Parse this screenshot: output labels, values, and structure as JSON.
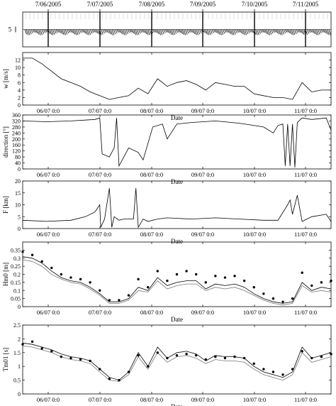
{
  "chart_data": [
    {
      "type": "line",
      "panel": "wind-barbs",
      "top_dates": [
        "7/06/2005",
        "7/07/2005",
        "7/08/2005",
        "7/09/2005",
        "7/10/2005",
        "7/11/2005"
      ],
      "scale_label": "5",
      "xlim": [
        5.0,
        11.4
      ]
    },
    {
      "type": "line",
      "ylabel": "w [m/s]",
      "xlabel": "Date",
      "ylim": [
        0,
        14
      ],
      "yticks": [
        0,
        2,
        4,
        6,
        8,
        10,
        12
      ],
      "xticks": [
        "06/07 0:0",
        "07/07 0:0",
        "08/07 0:0",
        "09/07 0:0",
        "10/07 0:0",
        "11/07 0:0"
      ],
      "xlim": [
        5.0,
        11.4
      ],
      "series": [
        {
          "x": [
            5.0,
            5.2,
            5.4,
            5.6,
            5.8,
            6.0,
            6.2,
            6.4,
            6.6,
            6.8,
            7.0,
            7.2,
            7.4,
            7.6,
            7.8,
            8.0,
            8.2,
            8.4,
            8.6,
            8.8,
            9.0,
            9.2,
            9.4,
            9.6,
            9.8,
            10.0,
            10.2,
            10.4,
            10.6,
            10.8,
            11.0,
            11.2,
            11.4
          ],
          "values": [
            12.5,
            12.5,
            11.0,
            9.0,
            7.0,
            6.0,
            5.0,
            3.5,
            2.5,
            1.5,
            2.0,
            2.5,
            4.5,
            3.0,
            7.0,
            5.0,
            6.0,
            6.5,
            5.5,
            4.0,
            6.0,
            5.5,
            5.0,
            5.0,
            3.0,
            2.5,
            2.0,
            2.0,
            1.5,
            6.0,
            3.5,
            4.0,
            4.0
          ]
        }
      ]
    },
    {
      "type": "line",
      "ylabel": "direction [°]",
      "xlabel": "Date",
      "ylim": [
        0,
        360
      ],
      "yticks": [
        0,
        40,
        80,
        120,
        160,
        200,
        240,
        280,
        320,
        360
      ],
      "xticks": [
        "06/07 0:0",
        "07/07 0:0",
        "08/07 0:0",
        "09/07 0:0",
        "10/07 0:0",
        "11/07 0:0"
      ],
      "xlim": [
        5.0,
        11.4
      ],
      "series": [
        {
          "x": [
            5.0,
            5.5,
            6.0,
            6.5,
            6.6,
            6.65,
            6.8,
            6.9,
            6.95,
            7.0,
            7.2,
            7.4,
            7.5,
            7.7,
            7.9,
            8.0,
            8.2,
            8.5,
            9.0,
            9.5,
            10.0,
            10.2,
            10.3,
            10.4,
            10.45,
            10.5,
            10.55,
            10.6,
            10.65,
            10.7,
            10.8,
            11.0,
            11.3,
            11.4
          ],
          "values": [
            320,
            315,
            320,
            330,
            340,
            100,
            80,
            140,
            340,
            20,
            140,
            110,
            60,
            280,
            300,
            200,
            300,
            310,
            320,
            305,
            280,
            240,
            290,
            300,
            20,
            300,
            20,
            300,
            10,
            310,
            340,
            330,
            340,
            260
          ]
        }
      ]
    },
    {
      "type": "line",
      "ylabel": "F [km]",
      "xlabel": "Date",
      "ylim": [
        0,
        20
      ],
      "yticks": [
        0,
        5,
        10,
        15,
        20
      ],
      "xticks": [
        "06/07 0:0",
        "07/07 0:0",
        "08/07 0:0",
        "09/07 0:0",
        "10/07 0:0",
        "11/07 0:0"
      ],
      "xlim": [
        5.0,
        11.4
      ],
      "series": [
        {
          "x": [
            5.0,
            5.5,
            6.0,
            6.3,
            6.5,
            6.6,
            6.62,
            6.7,
            6.8,
            6.85,
            6.9,
            7.0,
            7.1,
            7.3,
            7.35,
            7.4,
            7.5,
            7.6,
            7.8,
            8.0,
            8.5,
            9.0,
            9.5,
            10.0,
            10.3,
            10.5,
            10.55,
            10.6,
            10.7,
            10.8,
            11.0,
            11.3,
            11.4
          ],
          "values": [
            3.5,
            3.0,
            3.5,
            5.0,
            7.0,
            10.0,
            0.5,
            4.0,
            17.0,
            0.5,
            5.0,
            3.5,
            4.0,
            4.0,
            17.0,
            0.5,
            4.0,
            3.0,
            4.0,
            4.5,
            4.0,
            4.5,
            4.0,
            3.5,
            3.5,
            10.0,
            12.0,
            6.0,
            14.0,
            3.0,
            5.0,
            6.0,
            3.0
          ]
        }
      ]
    },
    {
      "type": "line",
      "ylabel": "Hm0 [m]",
      "xlabel": "Date",
      "ylim": [
        0,
        0.4
      ],
      "yticks": [
        0,
        0.05,
        0.1,
        0.15,
        0.2,
        0.25,
        0.3,
        0.35
      ],
      "xticks": [
        "06/07 0:0",
        "07/07 0:0",
        "08/07 0:0",
        "09/07 0:0",
        "10/07 0:0",
        "11/07 0:0"
      ],
      "xlim": [
        5.0,
        11.4
      ],
      "series": [
        {
          "name": "",
          "x": [
            5.0,
            5.2,
            5.4,
            5.6,
            5.8,
            6.0,
            6.2,
            6.4,
            6.6,
            6.8,
            7.0,
            7.2,
            7.4,
            7.6,
            7.8,
            8.0,
            8.2,
            8.4,
            8.6,
            8.8,
            9.0,
            9.2,
            9.4,
            9.6,
            9.8,
            10.0,
            10.2,
            10.4,
            10.6,
            10.8,
            11.0,
            11.2,
            11.4
          ],
          "values": [
            0.31,
            0.3,
            0.27,
            0.22,
            0.18,
            0.16,
            0.15,
            0.12,
            0.08,
            0.03,
            0.03,
            0.05,
            0.12,
            0.1,
            0.18,
            0.13,
            0.15,
            0.16,
            0.16,
            0.11,
            0.14,
            0.13,
            0.14,
            0.12,
            0.08,
            0.05,
            0.03,
            0.02,
            0.03,
            0.15,
            0.1,
            0.12,
            0.11
          ]
        },
        {
          "name": "",
          "x": [
            5.0,
            5.2,
            5.4,
            5.6,
            5.8,
            6.0,
            6.2,
            6.4,
            6.6,
            6.8,
            7.0,
            7.2,
            7.4,
            7.6,
            7.8,
            8.0,
            8.2,
            8.4,
            8.6,
            8.8,
            9.0,
            9.2,
            9.4,
            9.6,
            9.8,
            10.0,
            10.2,
            10.4,
            10.6,
            10.8,
            11.0,
            11.2,
            11.4
          ],
          "values": [
            0.29,
            0.28,
            0.25,
            0.2,
            0.17,
            0.15,
            0.14,
            0.11,
            0.07,
            0.02,
            0.02,
            0.04,
            0.1,
            0.09,
            0.16,
            0.11,
            0.13,
            0.14,
            0.14,
            0.1,
            0.12,
            0.11,
            0.12,
            0.1,
            0.07,
            0.04,
            0.02,
            0.01,
            0.02,
            0.13,
            0.09,
            0.1,
            0.09
          ]
        },
        {
          "name": "",
          "marker": "dots",
          "x": [
            5.0,
            5.2,
            5.4,
            5.6,
            5.8,
            6.0,
            6.2,
            6.4,
            6.6,
            6.8,
            7.0,
            7.2,
            7.4,
            7.6,
            7.8,
            8.0,
            8.2,
            8.4,
            8.6,
            8.8,
            9.0,
            9.2,
            9.4,
            9.6,
            9.8,
            10.0,
            10.2,
            10.4,
            10.6,
            10.8,
            11.0,
            11.2,
            11.4
          ],
          "values": [
            0.34,
            0.32,
            0.28,
            0.24,
            0.2,
            0.18,
            0.17,
            0.15,
            0.1,
            0.04,
            0.04,
            0.07,
            0.17,
            0.12,
            0.22,
            0.16,
            0.2,
            0.22,
            0.2,
            0.15,
            0.19,
            0.18,
            0.19,
            0.16,
            0.12,
            0.08,
            0.05,
            0.03,
            0.05,
            0.21,
            0.13,
            0.15,
            0.16
          ]
        }
      ]
    },
    {
      "type": "line",
      "ylabel": "Tm01 [s]",
      "xlabel": "Date",
      "ylim": [
        0,
        2.5
      ],
      "yticks": [
        0,
        0.5,
        1,
        1.5,
        2,
        2.5
      ],
      "xticks": [
        "06/07 0:0",
        "07/07 0:0",
        "08/07 0:0",
        "09/07 0:0",
        "10/07 0:0",
        "11/07 0:0"
      ],
      "xlim": [
        5.0,
        11.4
      ],
      "series": [
        {
          "name": "",
          "x": [
            5.0,
            5.2,
            5.4,
            5.6,
            5.8,
            6.0,
            6.2,
            6.4,
            6.6,
            6.8,
            7.0,
            7.2,
            7.4,
            7.6,
            7.8,
            8.0,
            8.2,
            8.4,
            8.6,
            8.8,
            9.0,
            9.2,
            9.4,
            9.6,
            9.8,
            10.0,
            10.2,
            10.4,
            10.6,
            10.8,
            11.0,
            11.2,
            11.4
          ],
          "values": [
            1.85,
            1.8,
            1.7,
            1.6,
            1.45,
            1.35,
            1.3,
            1.2,
            0.9,
            0.6,
            0.5,
            0.8,
            1.5,
            1.0,
            1.7,
            1.3,
            1.5,
            1.55,
            1.45,
            1.2,
            1.4,
            1.35,
            1.35,
            1.3,
            1.0,
            0.8,
            0.7,
            0.6,
            0.8,
            1.7,
            1.3,
            1.4,
            1.5
          ]
        },
        {
          "name": "",
          "x": [
            5.0,
            5.2,
            5.4,
            5.6,
            5.8,
            6.0,
            6.2,
            6.4,
            6.6,
            6.8,
            7.0,
            7.2,
            7.4,
            7.6,
            7.8,
            8.0,
            8.2,
            8.4,
            8.6,
            8.8,
            9.0,
            9.2,
            9.4,
            9.6,
            9.8,
            10.0,
            10.2,
            10.4,
            10.6,
            10.8,
            11.0,
            11.2,
            11.4
          ],
          "values": [
            1.75,
            1.7,
            1.6,
            1.5,
            1.35,
            1.25,
            1.2,
            1.1,
            0.8,
            0.5,
            0.45,
            0.7,
            1.35,
            0.9,
            1.5,
            1.15,
            1.35,
            1.4,
            1.3,
            1.1,
            1.25,
            1.2,
            1.2,
            1.15,
            0.9,
            0.7,
            0.6,
            0.5,
            0.7,
            1.5,
            1.15,
            1.25,
            1.35
          ]
        },
        {
          "name": "",
          "marker": "dots",
          "x": [
            5.0,
            5.2,
            5.4,
            5.6,
            5.8,
            6.0,
            6.2,
            6.4,
            6.6,
            6.8,
            7.0,
            7.2,
            7.4,
            7.6,
            7.8,
            8.0,
            8.2,
            8.4,
            8.6,
            8.8,
            9.0,
            9.2,
            9.4,
            9.6,
            9.8,
            10.0,
            10.2,
            10.4,
            10.6,
            10.8,
            11.0,
            11.2,
            11.4
          ],
          "values": [
            1.8,
            1.9,
            1.65,
            1.55,
            1.35,
            1.3,
            1.25,
            1.2,
            0.9,
            0.55,
            0.5,
            0.8,
            1.4,
            1.0,
            1.5,
            1.3,
            1.4,
            1.45,
            1.4,
            1.25,
            1.35,
            1.3,
            1.35,
            1.3,
            1.1,
            0.9,
            0.8,
            0.7,
            0.9,
            1.55,
            1.3,
            1.35,
            1.45
          ]
        }
      ]
    }
  ]
}
